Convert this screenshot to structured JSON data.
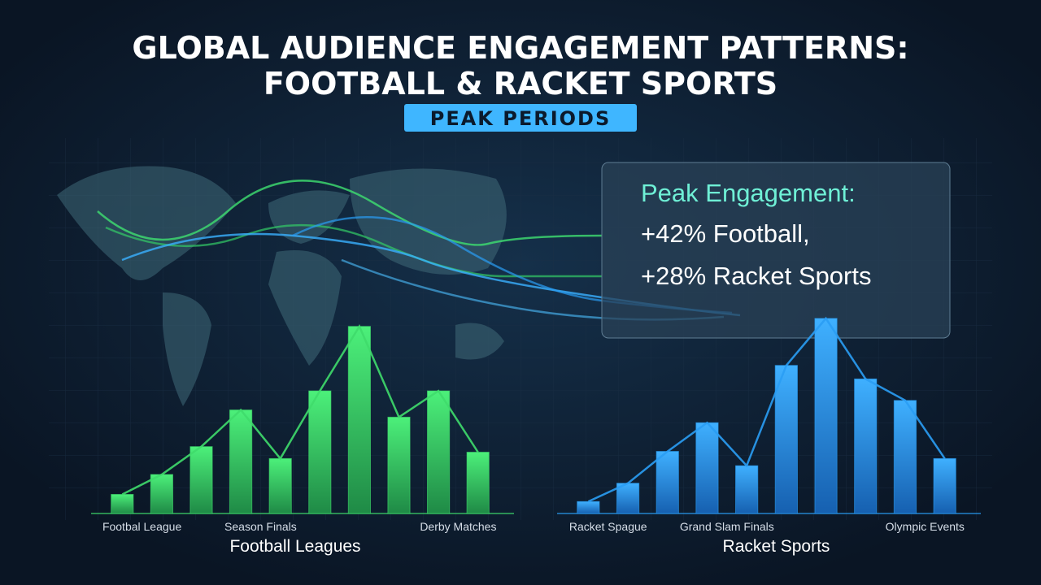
{
  "header": {
    "title": [
      "GLOBAL AUDIENCE ENGAGEMENT PATTERNS:",
      "FOOTBALL & RACKET SPORTS"
    ],
    "subtitle": "PEAK PERIODS"
  },
  "callout": {
    "heading": "Peak Engagement:",
    "lines": [
      "+42% Football,",
      "+28% Racket Sports"
    ]
  },
  "chart_data": [
    {
      "type": "bar",
      "x_label": "Football Leagues",
      "color": "#3fdc6c",
      "categories": [
        "Footbal League",
        null,
        null,
        null,
        "Season Finals",
        null,
        null,
        null,
        null,
        "Derby Matches"
      ],
      "values": [
        24,
        49,
        84,
        130,
        69,
        154,
        235,
        121,
        154,
        77
      ],
      "ylim": [
        0,
        250
      ]
    },
    {
      "type": "bar",
      "x_label": "Racket Sports",
      "color": "#2a9df4",
      "categories": [
        "Racket Spague",
        null,
        null,
        null,
        "Grand Slam Finals",
        null,
        null,
        null,
        null,
        "Olympic Events"
      ],
      "values": [
        15,
        38,
        78,
        114,
        60,
        186,
        245,
        169,
        142,
        69
      ],
      "ylim": [
        0,
        250
      ]
    }
  ]
}
